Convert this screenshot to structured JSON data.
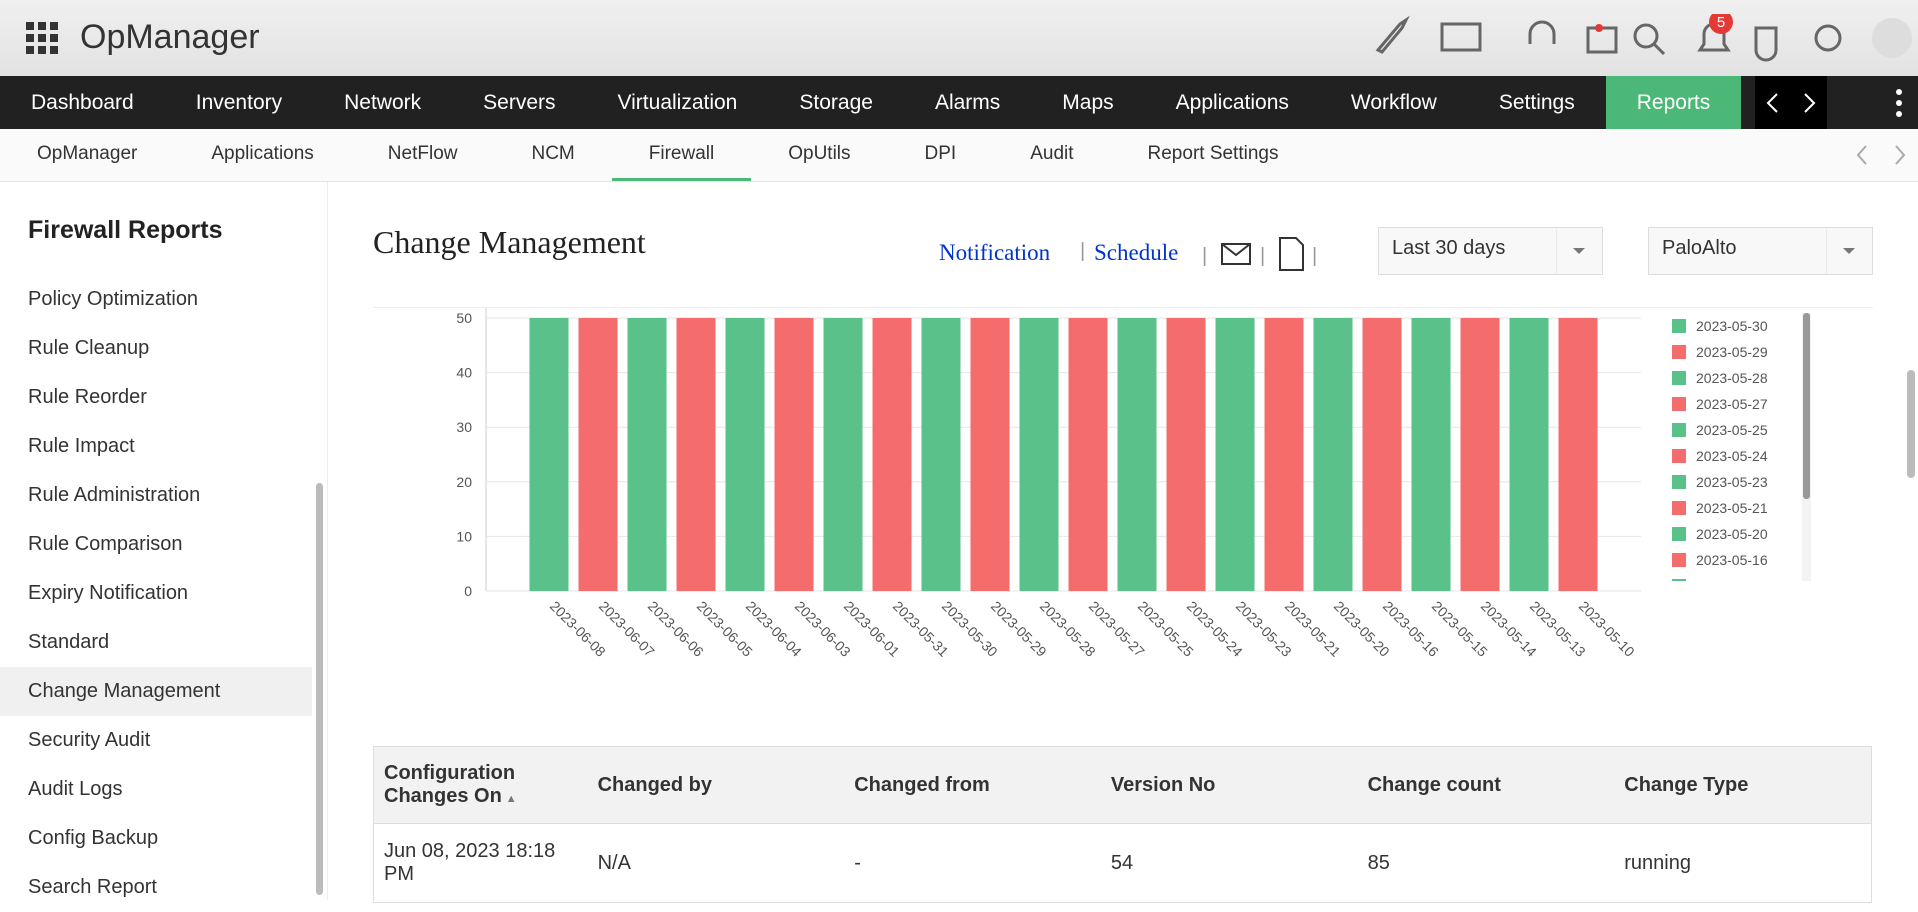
{
  "header": {
    "app_name": "OpManager",
    "notification_count": "5"
  },
  "main_nav": [
    "Dashboard",
    "Inventory",
    "Network",
    "Servers",
    "Virtualization",
    "Storage",
    "Alarms",
    "Maps",
    "Applications",
    "Workflow",
    "Settings",
    "Reports"
  ],
  "sub_nav": [
    "OpManager",
    "Applications",
    "NetFlow",
    "NCM",
    "Firewall",
    "OpUtils",
    "DPI",
    "Audit",
    "Report Settings"
  ],
  "sidebar": {
    "title": "Firewall Reports",
    "items": [
      "Policy Optimization",
      "Rule Cleanup",
      "Rule Reorder",
      "Rule Impact",
      "Rule Administration",
      "Rule Comparison",
      "Expiry Notification",
      "Standard",
      "Change Management",
      "Security Audit",
      "Audit Logs",
      "Config Backup",
      "Search Report"
    ]
  },
  "page": {
    "title": "Change Management",
    "links": [
      "Notification",
      "Schedule"
    ],
    "period": "Last 30 days",
    "device": "PaloAlto"
  },
  "chart_data": {
    "type": "bar",
    "categories": [
      "2023-06-08",
      "2023-06-07",
      "2023-06-06",
      "2023-06-05",
      "2023-06-04",
      "2023-06-03",
      "2023-06-01",
      "2023-05-31",
      "2023-05-30",
      "2023-05-29",
      "2023-05-28",
      "2023-05-27",
      "2023-05-25",
      "2023-05-24",
      "2023-05-23",
      "2023-05-21",
      "2023-05-20",
      "2023-05-16",
      "2023-05-15",
      "2023-05-14",
      "2023-05-13",
      "2023-05-10"
    ],
    "values": [
      50,
      50,
      50,
      50,
      50,
      50,
      50,
      50,
      50,
      50,
      50,
      50,
      50,
      50,
      50,
      50,
      50,
      50,
      50,
      50,
      50,
      50
    ],
    "colors": [
      "#5ac18a",
      "#f56c6c",
      "#5ac18a",
      "#f56c6c",
      "#5ac18a",
      "#f56c6c",
      "#5ac18a",
      "#f56c6c",
      "#5ac18a",
      "#f56c6c",
      "#5ac18a",
      "#f56c6c",
      "#5ac18a",
      "#f56c6c",
      "#5ac18a",
      "#f56c6c",
      "#5ac18a",
      "#f56c6c",
      "#5ac18a",
      "#f56c6c",
      "#5ac18a",
      "#f56c6c"
    ],
    "ylim": [
      0,
      50
    ],
    "yticks": [
      0,
      10,
      20,
      30,
      40,
      50
    ],
    "grid": true
  },
  "table": {
    "columns": [
      "Configuration Changes On",
      "Changed by",
      "Changed from",
      "Version No",
      "Change count",
      "Change Type"
    ],
    "rows": [
      [
        "Jun 08, 2023 18:18 PM",
        "N/A",
        "-",
        "54",
        "85",
        "running"
      ]
    ]
  }
}
